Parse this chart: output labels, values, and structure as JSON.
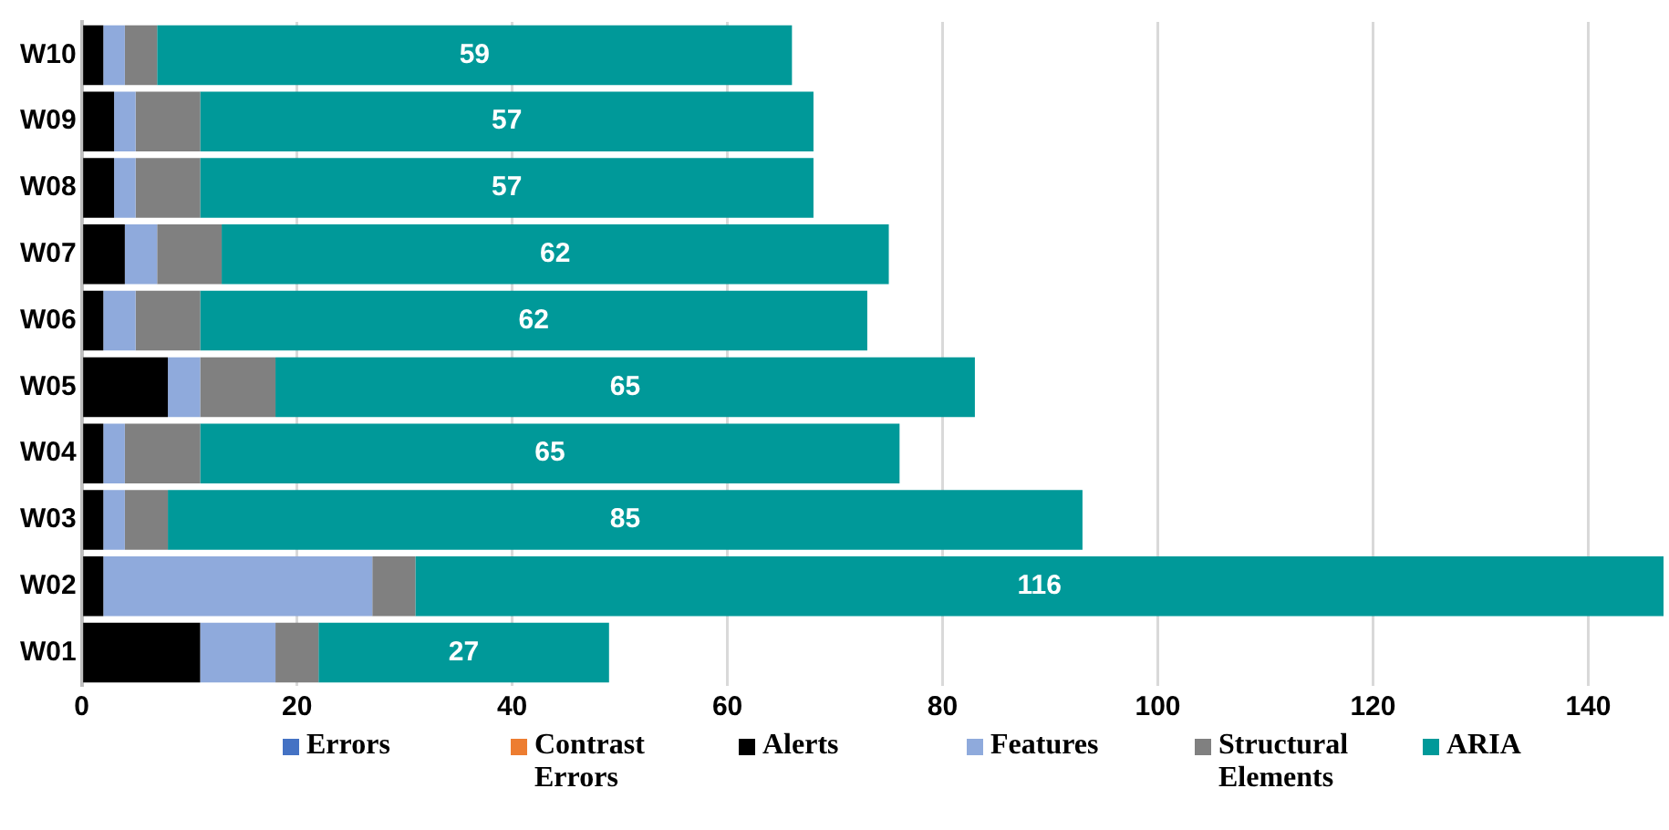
{
  "chart_data": {
    "type": "bar",
    "orientation": "horizontal",
    "stacked": true,
    "categories": [
      "W10",
      "W09",
      "W08",
      "W07",
      "W06",
      "W05",
      "W04",
      "W03",
      "W02",
      "W01"
    ],
    "series": [
      {
        "name": "Errors",
        "color": "#4472c4",
        "values": [
          0,
          0,
          0,
          0,
          0,
          0,
          0,
          0,
          0,
          0
        ]
      },
      {
        "name": "Contrast Errors",
        "color": "#ed7d31",
        "values": [
          0,
          0,
          0,
          0,
          0,
          0,
          0,
          0,
          0,
          0
        ]
      },
      {
        "name": "Alerts",
        "color": "#000000",
        "values": [
          2,
          3,
          3,
          4,
          2,
          8,
          2,
          2,
          2,
          11
        ]
      },
      {
        "name": "Features",
        "color": "#8faadc",
        "values": [
          2,
          2,
          2,
          3,
          3,
          3,
          2,
          2,
          25,
          7
        ]
      },
      {
        "name": "Structural Elements",
        "color": "#808080",
        "values": [
          3,
          6,
          6,
          6,
          6,
          7,
          7,
          4,
          4,
          4
        ]
      },
      {
        "name": "ARIA",
        "color": "#009999",
        "values": [
          59,
          57,
          57,
          62,
          62,
          65,
          65,
          85,
          116,
          27
        ],
        "value_labels": [
          "59",
          "57",
          "57",
          "62",
          "62",
          "65",
          "65",
          "85",
          "116",
          "27"
        ]
      }
    ],
    "xlim": [
      0,
      147
    ],
    "xticks": [
      0,
      20,
      40,
      60,
      80,
      100,
      120,
      140
    ],
    "grid": "x",
    "legend": "bottom"
  }
}
